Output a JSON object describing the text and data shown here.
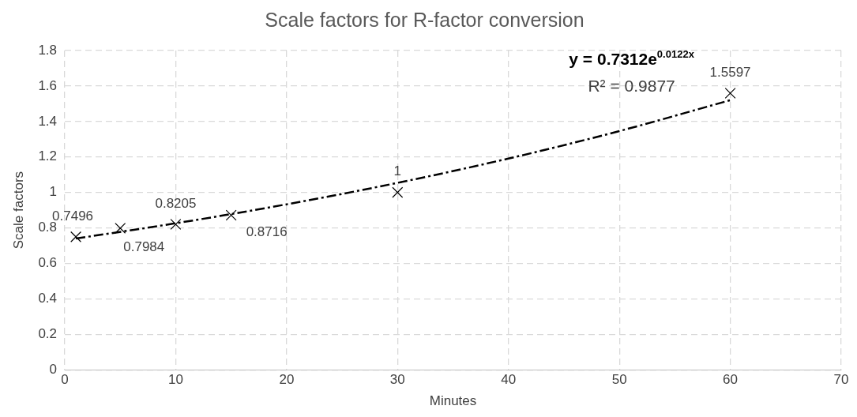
{
  "chart_data": {
    "type": "scatter",
    "title": "Scale factors for R-factor conversion",
    "xlabel": "Minutes",
    "ylabel": "Scale factors",
    "xlim": [
      0,
      70
    ],
    "xticks": [
      0,
      10,
      20,
      30,
      40,
      50,
      60,
      70
    ],
    "ylim": [
      0,
      1.8
    ],
    "yticks": [
      0,
      0.2,
      0.4,
      0.6,
      0.8,
      1,
      1.2,
      1.4,
      1.6,
      1.8
    ],
    "grid": true,
    "legend": false,
    "annotations": [
      "y = 0.7312e$^{0.0122x}$",
      "R² = 0.9877"
    ],
    "series": [
      {
        "color": "#000000",
        "marker": "cross",
        "x": [
          1,
          5,
          10,
          15,
          30,
          60
        ],
        "values": [
          0.7496,
          0.7984,
          0.8205,
          0.8716,
          1,
          1.5597
        ],
        "value_labels": [
          "0.7496",
          "0.7984",
          "0.8205",
          "0.8716",
          "1",
          "1.5597"
        ]
      },
      {
        "type": "line",
        "color": "#000000",
        "marker": "none",
        "line_style": "dashed",
        "x": [
          1,
          10,
          20,
          30,
          40,
          50,
          60
        ],
        "values": [
          0.74,
          0.826,
          0.933,
          1.054,
          1.191,
          1.346,
          1.52
        ]
      }
    ]
  }
}
